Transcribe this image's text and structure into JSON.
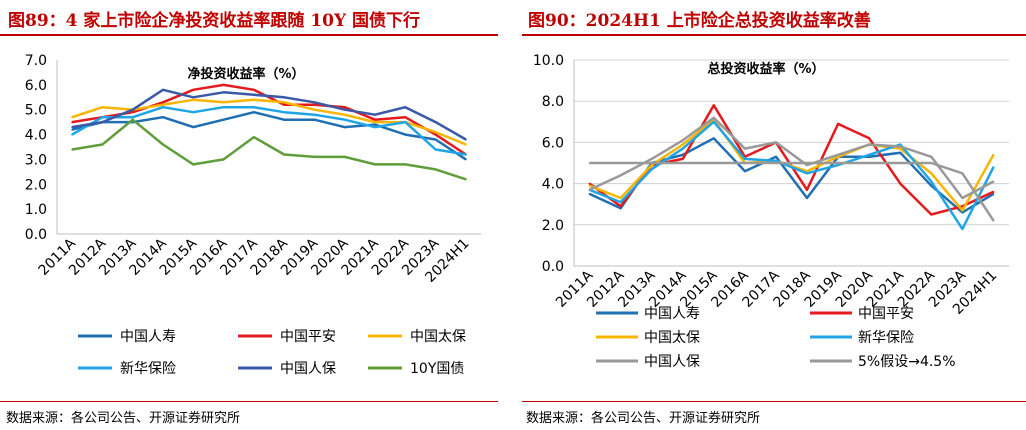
{
  "figures": [
    {
      "title": "图89：4 家上市险企净投资收益率跟随 10Y 国债下行",
      "source": "数据来源：各公司公告、开源证券研究所"
    },
    {
      "title": "图90：2024H1 上市险企总投资收益率改善",
      "source": "数据来源：各公司公告、开源证券研究所"
    }
  ],
  "chart_data": [
    {
      "type": "line",
      "title": "净投资收益率（%）",
      "categories": [
        "2011A",
        "2012A",
        "2013A",
        "2014A",
        "2015A",
        "2016A",
        "2017A",
        "2018A",
        "2019A",
        "2020A",
        "2021A",
        "2022A",
        "2023A",
        "2024H1"
      ],
      "ylim": [
        0,
        7
      ],
      "yticks": [
        "0.0",
        "1.0",
        "2.0",
        "3.0",
        "4.0",
        "5.0",
        "6.0",
        "7.0"
      ],
      "legend_position": "bottom",
      "series": [
        {
          "name": "中国人寿",
          "color": "#1f6fb2",
          "values": [
            4.2,
            4.5,
            4.5,
            4.7,
            4.3,
            4.6,
            4.9,
            4.6,
            4.6,
            4.3,
            4.4,
            4.0,
            3.8,
            3.0
          ]
        },
        {
          "name": "中国平安",
          "color": "#e41a1c",
          "values": [
            4.5,
            4.7,
            4.9,
            5.3,
            5.8,
            6.0,
            5.8,
            5.2,
            5.2,
            5.1,
            4.6,
            4.7,
            4.0,
            3.2
          ]
        },
        {
          "name": "中国太保",
          "color": "#f7b500",
          "values": [
            4.7,
            5.1,
            5.0,
            5.2,
            5.4,
            5.3,
            5.4,
            5.3,
            5.0,
            4.8,
            4.5,
            4.5,
            4.1,
            3.6
          ]
        },
        {
          "name": "新华保险",
          "color": "#1fa5e6",
          "values": [
            4.0,
            4.7,
            4.7,
            5.1,
            4.9,
            5.1,
            5.1,
            4.9,
            4.8,
            4.6,
            4.3,
            4.5,
            3.4,
            3.2
          ]
        },
        {
          "name": "中国人保",
          "color": "#3a59a8",
          "values": [
            4.3,
            4.5,
            5.0,
            5.8,
            5.5,
            5.7,
            5.6,
            5.5,
            5.3,
            5.0,
            4.8,
            5.1,
            4.5,
            3.8
          ]
        },
        {
          "name": "10Y国债",
          "color": "#5f9e3a",
          "values": [
            3.4,
            3.6,
            4.6,
            3.6,
            2.8,
            3.0,
            3.9,
            3.2,
            3.1,
            3.1,
            2.8,
            2.8,
            2.6,
            2.2
          ]
        }
      ]
    },
    {
      "type": "line",
      "title": "总投资收益率（%）",
      "categories": [
        "2011A",
        "2012A",
        "2013A",
        "2014A",
        "2015A",
        "2016A",
        "2017A",
        "2018A",
        "2019A",
        "2020A",
        "2021A",
        "2022A",
        "2023A",
        "2024H1"
      ],
      "ylim": [
        0,
        10
      ],
      "yticks": [
        "0.0",
        "2.0",
        "4.0",
        "6.0",
        "8.0",
        "10.0"
      ],
      "legend_position": "bottom",
      "series": [
        {
          "name": "中国人寿",
          "color": "#1f6fb2",
          "values": [
            3.5,
            2.8,
            5.0,
            5.4,
            6.2,
            4.6,
            5.3,
            3.3,
            5.3,
            5.3,
            5.5,
            3.9,
            2.6,
            3.5
          ]
        },
        {
          "name": "中国平安",
          "color": "#e41a1c",
          "values": [
            4.0,
            2.9,
            4.9,
            5.2,
            7.8,
            5.3,
            6.0,
            3.7,
            6.9,
            6.2,
            4.0,
            2.5,
            2.9,
            3.6
          ]
        },
        {
          "name": "中国太保",
          "color": "#f7b500",
          "values": [
            3.9,
            3.3,
            4.9,
            5.9,
            7.1,
            5.0,
            5.1,
            4.6,
            5.3,
            5.9,
            5.7,
            4.5,
            2.7,
            5.4
          ]
        },
        {
          "name": "新华保险",
          "color": "#1fa5e6",
          "values": [
            3.7,
            3.1,
            4.7,
            5.7,
            7.0,
            5.2,
            5.1,
            4.5,
            4.9,
            5.4,
            5.9,
            4.1,
            1.8,
            4.8
          ]
        },
        {
          "name": "中国人保",
          "color": "#999999",
          "values": [
            3.7,
            4.4,
            5.2,
            6.1,
            7.2,
            5.7,
            6.0,
            4.9,
            5.4,
            5.9,
            5.8,
            5.3,
            3.3,
            4.1
          ]
        },
        {
          "name": "5%假设→4.5%",
          "color": "#999999",
          "values": [
            5.0,
            5.0,
            5.0,
            5.0,
            5.0,
            5.0,
            5.0,
            5.0,
            5.0,
            5.0,
            5.0,
            5.0,
            4.5,
            2.2
          ]
        }
      ]
    }
  ]
}
